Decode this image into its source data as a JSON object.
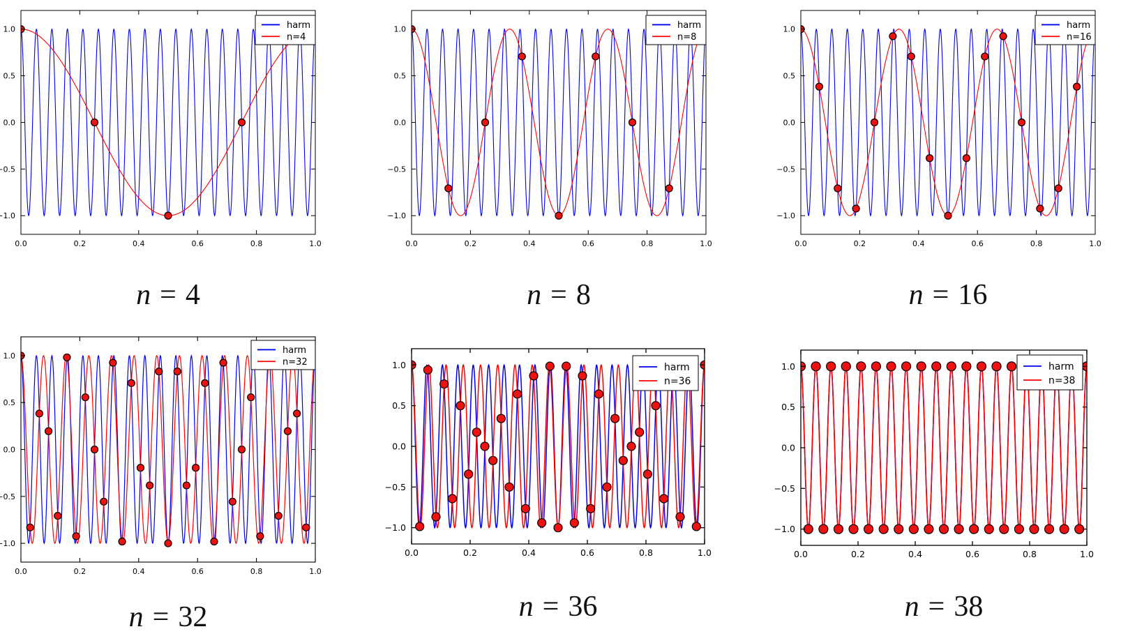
{
  "figure": {
    "description": "Grid of six matplotlib plots showing aliasing of a 19-cycle cosine harmonic sampled at n equally spaced points on [0,1]",
    "background": "#ffffff"
  },
  "colors": {
    "harmonic_line": "#0000ee",
    "alias_line": "#ff0000",
    "sample_fill": "#ee1111",
    "sample_edge": "#000000",
    "axes": "#000000",
    "legend_background": "#ffffff"
  },
  "axes_ticks": {
    "xlim": [
      0,
      1
    ],
    "ylim": [
      -1.2,
      1.2
    ],
    "x_values": [
      0.0,
      0.2,
      0.4,
      0.6,
      0.8,
      1.0
    ],
    "x_labels": [
      "0.0",
      "0.2",
      "0.4",
      "0.6",
      "0.8",
      "1.0"
    ],
    "y_values": [
      1.0,
      0.5,
      0.0,
      -0.5,
      -1.0
    ],
    "y_labels": [
      "1.0",
      "0.5",
      "0.0",
      "−0.5",
      "−1.0"
    ],
    "grid": "off",
    "legend_position": "upper right"
  },
  "chart_data": [
    {
      "type": "line",
      "caption": "n = 4",
      "caption_var": "n",
      "caption_eq": "=",
      "caption_value": "4",
      "n_samples": 4,
      "legend": {
        "entries": [
          {
            "label": "harm",
            "color": "#0000ee"
          },
          {
            "label": "n=4",
            "color": "#ff0000"
          }
        ]
      },
      "series": [
        {
          "name": "harm",
          "type": "line",
          "color": "#0000ee",
          "formula": "cos(2*pi*19*x)",
          "frequency_cycles": 19
        },
        {
          "name": "n=4",
          "type": "line",
          "color": "#ff0000",
          "formula": "cos(2*pi*1*x)",
          "frequency_cycles": 1
        },
        {
          "name": "samples",
          "type": "scatter",
          "x": [
            0,
            0.25,
            0.5,
            0.75,
            1
          ],
          "y": [
            1,
            0,
            -1,
            0,
            1
          ]
        }
      ]
    },
    {
      "type": "line",
      "caption": "n = 8",
      "caption_var": "n",
      "caption_eq": "=",
      "caption_value": "8",
      "n_samples": 8,
      "legend": {
        "entries": [
          {
            "label": "harm",
            "color": "#0000ee"
          },
          {
            "label": "n=8",
            "color": "#ff0000"
          }
        ]
      },
      "series": [
        {
          "name": "harm",
          "type": "line",
          "color": "#0000ee",
          "formula": "cos(2*pi*19*x)",
          "frequency_cycles": 19
        },
        {
          "name": "n=8",
          "type": "line",
          "color": "#ff0000",
          "formula": "cos(2*pi*3*x)",
          "frequency_cycles": 3
        },
        {
          "name": "samples",
          "type": "scatter",
          "x": [
            0,
            0.125,
            0.25,
            0.375,
            0.5,
            0.625,
            0.75,
            0.875,
            1
          ],
          "y": [
            1,
            -0.707,
            0,
            0.707,
            -1,
            0.707,
            0,
            -0.707,
            1
          ]
        }
      ]
    },
    {
      "type": "line",
      "caption": "n = 16",
      "caption_var": "n",
      "caption_eq": "=",
      "caption_value": "16",
      "n_samples": 16,
      "legend": {
        "entries": [
          {
            "label": "harm",
            "color": "#0000ee"
          },
          {
            "label": "n=16",
            "color": "#ff0000"
          }
        ]
      },
      "series": [
        {
          "name": "harm",
          "type": "line",
          "color": "#0000ee",
          "formula": "cos(2*pi*19*x)",
          "frequency_cycles": 19
        },
        {
          "name": "n=16",
          "type": "line",
          "color": "#ff0000",
          "formula": "cos(2*pi*3*x)",
          "frequency_cycles": 3
        },
        {
          "name": "samples",
          "type": "scatter",
          "x": [
            0,
            0.0625,
            0.125,
            0.1875,
            0.25,
            0.3125,
            0.375,
            0.4375,
            0.5,
            0.5625,
            0.625,
            0.6875,
            0.75,
            0.8125,
            0.875,
            0.9375,
            1
          ],
          "y": [
            1,
            0.383,
            -0.707,
            -0.924,
            0,
            0.924,
            0.707,
            -0.383,
            -1,
            -0.383,
            0.707,
            0.924,
            0,
            -0.924,
            -0.707,
            0.383,
            1
          ]
        }
      ]
    },
    {
      "type": "line",
      "caption": "n = 32",
      "caption_var": "n",
      "caption_eq": "=",
      "caption_value": "32",
      "n_samples": 32,
      "legend": {
        "entries": [
          {
            "label": "harm",
            "color": "#0000ee"
          },
          {
            "label": "n=32",
            "color": "#ff0000"
          }
        ]
      },
      "series": [
        {
          "name": "harm",
          "type": "line",
          "color": "#0000ee",
          "formula": "cos(2*pi*19*x)",
          "frequency_cycles": 19
        },
        {
          "name": "n=32",
          "type": "line",
          "color": "#ff0000",
          "formula": "cos(2*pi*13*x)",
          "frequency_cycles": 13
        },
        {
          "name": "samples",
          "type": "scatter",
          "x": [
            0,
            0.0313,
            0.0625,
            0.0938,
            0.125,
            0.1563,
            0.1875,
            0.2188,
            0.25,
            0.2813,
            0.3125,
            0.3438,
            0.375,
            0.4063,
            0.4375,
            0.4688,
            0.5,
            0.5313,
            0.5625,
            0.5938,
            0.625,
            0.6563,
            0.6875,
            0.7188,
            0.75,
            0.7813,
            0.8125,
            0.8438,
            0.875,
            0.9063,
            0.9375,
            0.9688,
            1
          ],
          "y": [
            1,
            -0.831,
            0.383,
            0.195,
            -0.707,
            0.981,
            -0.924,
            0.556,
            0,
            -0.556,
            0.924,
            -0.981,
            0.707,
            -0.195,
            -0.383,
            0.831,
            -1,
            0.831,
            -0.383,
            -0.195,
            0.707,
            -0.981,
            0.924,
            -0.556,
            0,
            0.556,
            -0.924,
            0.981,
            -0.707,
            0.195,
            0.383,
            -0.831,
            1
          ]
        }
      ]
    },
    {
      "type": "line",
      "caption": "n = 36",
      "caption_var": "n",
      "caption_eq": "=",
      "caption_value": "36",
      "n_samples": 36,
      "legend": {
        "entries": [
          {
            "label": "harm",
            "color": "#0000ee"
          },
          {
            "label": "n=36",
            "color": "#ff0000"
          }
        ]
      },
      "series": [
        {
          "name": "harm",
          "type": "line",
          "color": "#0000ee",
          "formula": "cos(2*pi*19*x)",
          "frequency_cycles": 19
        },
        {
          "name": "n=36",
          "type": "line",
          "color": "#ff0000",
          "formula": "cos(2*pi*17*x)",
          "frequency_cycles": 17
        },
        {
          "name": "samples",
          "type": "scatter",
          "x": [
            0,
            0.0278,
            0.0556,
            0.0833,
            0.1111,
            0.1389,
            0.1667,
            0.1944,
            0.2222,
            0.25,
            0.2778,
            0.3056,
            0.3333,
            0.3611,
            0.3889,
            0.4167,
            0.4444,
            0.4722,
            0.5,
            0.5278,
            0.5556,
            0.5833,
            0.6111,
            0.6389,
            0.6667,
            0.6944,
            0.7222,
            0.75,
            0.7778,
            0.8056,
            0.8333,
            0.8611,
            0.8889,
            0.9167,
            0.9444,
            0.9722,
            1
          ],
          "y": [
            1,
            -0.985,
            0.94,
            -0.866,
            0.766,
            -0.643,
            0.5,
            -0.342,
            0.174,
            0,
            -0.174,
            0.342,
            -0.5,
            0.643,
            -0.766,
            0.866,
            -0.94,
            0.985,
            -1,
            0.985,
            -0.94,
            0.866,
            -0.766,
            0.643,
            -0.5,
            0.342,
            -0.174,
            0,
            0.174,
            -0.342,
            0.5,
            -0.643,
            0.766,
            -0.866,
            0.94,
            -0.985,
            1
          ]
        }
      ]
    },
    {
      "type": "line",
      "caption": "n = 38",
      "caption_var": "n",
      "caption_eq": "=",
      "caption_value": "38",
      "n_samples": 38,
      "legend": {
        "entries": [
          {
            "label": "harm",
            "color": "#0000ee"
          },
          {
            "label": "n=38",
            "color": "#ff0000"
          }
        ]
      },
      "series": [
        {
          "name": "harm",
          "type": "line",
          "color": "#0000ee",
          "formula": "cos(2*pi*19*x)",
          "frequency_cycles": 19
        },
        {
          "name": "n=38",
          "type": "line",
          "color": "#ff0000",
          "formula": "cos(2*pi*19*x)",
          "frequency_cycles": 19
        },
        {
          "name": "samples",
          "type": "scatter",
          "x": [
            0,
            0.0263,
            0.0526,
            0.0789,
            0.1053,
            0.1316,
            0.1579,
            0.1842,
            0.2105,
            0.2368,
            0.2632,
            0.2895,
            0.3158,
            0.3421,
            0.3684,
            0.3947,
            0.4211,
            0.4474,
            0.4737,
            0.5,
            0.5263,
            0.5526,
            0.5789,
            0.6053,
            0.6316,
            0.6579,
            0.6842,
            0.7105,
            0.7368,
            0.7632,
            0.7895,
            0.8158,
            0.8421,
            0.8684,
            0.8947,
            0.9211,
            0.9474,
            0.9737,
            1
          ],
          "y": [
            1,
            -1,
            1,
            -1,
            1,
            -1,
            1,
            -1,
            1,
            -1,
            1,
            -1,
            1,
            -1,
            1,
            -1,
            1,
            -1,
            1,
            -1,
            1,
            -1,
            1,
            -1,
            1,
            -1,
            1,
            -1,
            1,
            -1,
            1,
            -1,
            1,
            -1,
            1,
            -1,
            1,
            -1,
            1
          ]
        }
      ]
    }
  ]
}
